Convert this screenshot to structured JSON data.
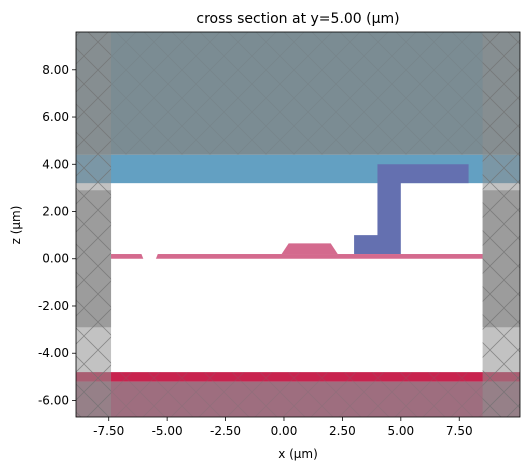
{
  "chart_data": {
    "type": "cross-section",
    "title": "cross section at y=5.00 (μm)",
    "xlabel": "x (μm)",
    "ylabel": "z (μm)",
    "xlim": [
      -8.9,
      10.1
    ],
    "ylim": [
      -6.7,
      9.6
    ],
    "x_ticks": [
      -7.5,
      -5.0,
      -2.5,
      0.0,
      2.5,
      5.0,
      7.5
    ],
    "x_tick_labels": [
      "-7.50",
      "-5.00",
      "-2.50",
      "0.00",
      "2.50",
      "5.00",
      "7.50"
    ],
    "y_ticks": [
      -6,
      -4,
      -2,
      0,
      2,
      4,
      6,
      8
    ],
    "y_tick_labels": [
      "-6.00",
      "-4.00",
      "-2.00",
      "0.00",
      "2.00",
      "4.00",
      "6.00",
      "8.00"
    ],
    "colors": {
      "top_region": "#7b8c93",
      "cladding": "#63a0c2",
      "metal": "#6470b0",
      "waveguide": "#d46a8e",
      "bottom_layer": "#c8234e",
      "substrate": "#9e6e7f",
      "pml": "#8f8f8f",
      "pml_side": "#aaaaaa"
    },
    "regions": [
      {
        "name": "top",
        "x": [
          -8.9,
          10.1
        ],
        "z": [
          4.4,
          9.6
        ],
        "color_key": "top_region"
      },
      {
        "name": "cladding",
        "x": [
          -8.9,
          10.1
        ],
        "z": [
          3.2,
          4.4
        ],
        "color_key": "cladding"
      },
      {
        "name": "bottom_layer",
        "x": [
          -8.9,
          10.1
        ],
        "z": [
          -5.2,
          -4.8
        ],
        "color_key": "bottom_layer"
      },
      {
        "name": "substrate",
        "x": [
          -8.9,
          10.1
        ],
        "z": [
          -6.7,
          -5.2
        ],
        "color_key": "substrate"
      }
    ],
    "metal_polygons": [
      {
        "points": [
          [
            3.0,
            0.2
          ],
          [
            5.0,
            0.2
          ],
          [
            5.0,
            3.2
          ],
          [
            7.9,
            3.2
          ],
          [
            7.9,
            4.0
          ],
          [
            4.0,
            4.0
          ],
          [
            4.0,
            1.0
          ],
          [
            3.0,
            1.0
          ]
        ]
      }
    ],
    "waveguide_layer": {
      "x": [
        -8.9,
        10.1
      ],
      "z": [
        0.0,
        0.2
      ]
    },
    "waveguide_gap": {
      "points": [
        [
          -6.1,
          0.2
        ],
        [
          -5.4,
          0.2
        ],
        [
          -5.6,
          -0.3
        ],
        [
          -5.9,
          -0.3
        ]
      ]
    },
    "rib": {
      "points": [
        [
          -0.1,
          0.2
        ],
        [
          2.3,
          0.2
        ],
        [
          2.0,
          0.65
        ],
        [
          0.2,
          0.65
        ]
      ]
    },
    "pml_left": {
      "x": [
        -8.9,
        -7.4
      ]
    },
    "pml_right": {
      "x": [
        8.5,
        10.1
      ]
    }
  }
}
